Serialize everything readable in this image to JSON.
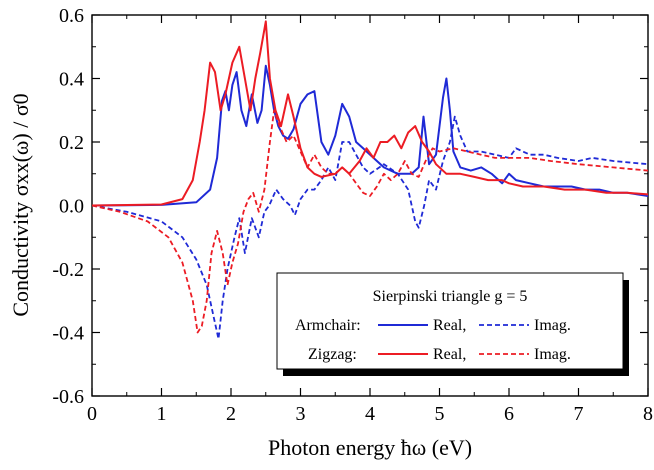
{
  "chart_data": {
    "type": "line",
    "xlabel": "Photon energy ħω (eV)",
    "ylabel": "Conductivity σxx(ω) / σ0",
    "xlim": [
      0,
      8
    ],
    "ylim": [
      -0.6,
      0.6
    ],
    "xticks": [
      "0",
      "1",
      "2",
      "3",
      "4",
      "5",
      "6",
      "7",
      "8"
    ],
    "yticks": [
      "-0.6",
      "-0.4",
      "-0.2",
      "0.0",
      "0.2",
      "0.4",
      "0.6"
    ],
    "grid": false,
    "legend_placement": "bottom-right",
    "legend": {
      "title": "Sierpinski triangle g = 5",
      "row1_label": "Armchair:",
      "row2_label": "Zigzag:",
      "real_label": "Real,",
      "imag_label": "Imag."
    },
    "colors": {
      "armchair": "#1f2ad6",
      "zigzag": "#ec1c24"
    },
    "series": [
      {
        "name": "Armchair Real",
        "group": "armchair",
        "style": "solid",
        "points": [
          [
            0,
            0
          ],
          [
            1.0,
            0.002
          ],
          [
            1.5,
            0.01
          ],
          [
            1.7,
            0.05
          ],
          [
            1.8,
            0.15
          ],
          [
            1.87,
            0.33
          ],
          [
            1.92,
            0.36
          ],
          [
            1.97,
            0.3
          ],
          [
            2.02,
            0.38
          ],
          [
            2.08,
            0.42
          ],
          [
            2.15,
            0.3
          ],
          [
            2.22,
            0.25
          ],
          [
            2.3,
            0.35
          ],
          [
            2.38,
            0.26
          ],
          [
            2.44,
            0.3
          ],
          [
            2.5,
            0.44
          ],
          [
            2.56,
            0.38
          ],
          [
            2.62,
            0.3
          ],
          [
            2.68,
            0.25
          ],
          [
            2.75,
            0.22
          ],
          [
            2.82,
            0.21
          ],
          [
            2.9,
            0.24
          ],
          [
            3.0,
            0.32
          ],
          [
            3.1,
            0.35
          ],
          [
            3.2,
            0.36
          ],
          [
            3.3,
            0.2
          ],
          [
            3.4,
            0.16
          ],
          [
            3.5,
            0.22
          ],
          [
            3.6,
            0.32
          ],
          [
            3.7,
            0.28
          ],
          [
            3.8,
            0.2
          ],
          [
            3.9,
            0.18
          ],
          [
            4.0,
            0.16
          ],
          [
            4.1,
            0.14
          ],
          [
            4.2,
            0.12
          ],
          [
            4.3,
            0.11
          ],
          [
            4.4,
            0.1
          ],
          [
            4.5,
            0.1
          ],
          [
            4.6,
            0.1
          ],
          [
            4.7,
            0.12
          ],
          [
            4.77,
            0.28
          ],
          [
            4.85,
            0.13
          ],
          [
            4.95,
            0.16
          ],
          [
            5.05,
            0.34
          ],
          [
            5.1,
            0.4
          ],
          [
            5.15,
            0.3
          ],
          [
            5.2,
            0.17
          ],
          [
            5.3,
            0.12
          ],
          [
            5.45,
            0.11
          ],
          [
            5.6,
            0.12
          ],
          [
            5.75,
            0.1
          ],
          [
            5.9,
            0.07
          ],
          [
            6.0,
            0.1
          ],
          [
            6.1,
            0.08
          ],
          [
            6.3,
            0.07
          ],
          [
            6.5,
            0.06
          ],
          [
            6.7,
            0.06
          ],
          [
            6.9,
            0.06
          ],
          [
            7.1,
            0.05
          ],
          [
            7.3,
            0.05
          ],
          [
            7.5,
            0.04
          ],
          [
            7.7,
            0.04
          ],
          [
            8.0,
            0.03
          ]
        ]
      },
      {
        "name": "Armchair Imag.",
        "group": "armchair",
        "style": "dashed",
        "points": [
          [
            0,
            0
          ],
          [
            0.5,
            -0.02
          ],
          [
            1.0,
            -0.05
          ],
          [
            1.3,
            -0.1
          ],
          [
            1.5,
            -0.17
          ],
          [
            1.65,
            -0.25
          ],
          [
            1.75,
            -0.35
          ],
          [
            1.82,
            -0.42
          ],
          [
            1.88,
            -0.3
          ],
          [
            1.95,
            -0.2
          ],
          [
            2.05,
            -0.1
          ],
          [
            2.12,
            -0.04
          ],
          [
            2.2,
            -0.15
          ],
          [
            2.3,
            -0.04
          ],
          [
            2.4,
            -0.1
          ],
          [
            2.48,
            -0.02
          ],
          [
            2.55,
            0.0
          ],
          [
            2.65,
            0.05
          ],
          [
            2.75,
            0.02
          ],
          [
            2.85,
            0.0
          ],
          [
            2.92,
            -0.03
          ],
          [
            3.0,
            0.02
          ],
          [
            3.1,
            0.05
          ],
          [
            3.2,
            0.05
          ],
          [
            3.3,
            0.08
          ],
          [
            3.4,
            0.12
          ],
          [
            3.5,
            0.08
          ],
          [
            3.6,
            0.2
          ],
          [
            3.7,
            0.2
          ],
          [
            3.8,
            0.16
          ],
          [
            3.9,
            0.12
          ],
          [
            4.0,
            0.1
          ],
          [
            4.2,
            0.13
          ],
          [
            4.4,
            0.1
          ],
          [
            4.55,
            0.05
          ],
          [
            4.65,
            -0.05
          ],
          [
            4.7,
            -0.07
          ],
          [
            4.78,
            0.0
          ],
          [
            4.85,
            0.08
          ],
          [
            4.95,
            0.05
          ],
          [
            5.05,
            0.14
          ],
          [
            5.15,
            0.2
          ],
          [
            5.22,
            0.28
          ],
          [
            5.3,
            0.22
          ],
          [
            5.4,
            0.17
          ],
          [
            5.6,
            0.17
          ],
          [
            5.8,
            0.16
          ],
          [
            6.0,
            0.15
          ],
          [
            6.1,
            0.18
          ],
          [
            6.3,
            0.16
          ],
          [
            6.5,
            0.16
          ],
          [
            6.7,
            0.15
          ],
          [
            7.0,
            0.14
          ],
          [
            7.2,
            0.15
          ],
          [
            7.5,
            0.14
          ],
          [
            8.0,
            0.13
          ]
        ]
      },
      {
        "name": "Zigzag Real",
        "group": "zigzag",
        "style": "solid",
        "points": [
          [
            0,
            0
          ],
          [
            1.0,
            0.003
          ],
          [
            1.3,
            0.02
          ],
          [
            1.45,
            0.08
          ],
          [
            1.55,
            0.2
          ],
          [
            1.62,
            0.3
          ],
          [
            1.7,
            0.45
          ],
          [
            1.77,
            0.42
          ],
          [
            1.85,
            0.3
          ],
          [
            1.92,
            0.35
          ],
          [
            2.02,
            0.45
          ],
          [
            2.12,
            0.5
          ],
          [
            2.2,
            0.4
          ],
          [
            2.28,
            0.3
          ],
          [
            2.35,
            0.4
          ],
          [
            2.42,
            0.48
          ],
          [
            2.5,
            0.58
          ],
          [
            2.56,
            0.4
          ],
          [
            2.64,
            0.3
          ],
          [
            2.72,
            0.25
          ],
          [
            2.82,
            0.35
          ],
          [
            2.9,
            0.28
          ],
          [
            3.0,
            0.18
          ],
          [
            3.1,
            0.12
          ],
          [
            3.2,
            0.1
          ],
          [
            3.3,
            0.09
          ],
          [
            3.5,
            0.1
          ],
          [
            3.6,
            0.12
          ],
          [
            3.7,
            0.1
          ],
          [
            3.85,
            0.14
          ],
          [
            3.95,
            0.18
          ],
          [
            4.05,
            0.15
          ],
          [
            4.15,
            0.2
          ],
          [
            4.25,
            0.2
          ],
          [
            4.35,
            0.22
          ],
          [
            4.45,
            0.18
          ],
          [
            4.55,
            0.23
          ],
          [
            4.65,
            0.25
          ],
          [
            4.75,
            0.2
          ],
          [
            4.85,
            0.17
          ],
          [
            4.95,
            0.13
          ],
          [
            5.1,
            0.1
          ],
          [
            5.3,
            0.1
          ],
          [
            5.5,
            0.09
          ],
          [
            5.7,
            0.08
          ],
          [
            5.9,
            0.08
          ],
          [
            6.0,
            0.07
          ],
          [
            6.2,
            0.06
          ],
          [
            6.5,
            0.06
          ],
          [
            6.8,
            0.05
          ],
          [
            7.1,
            0.05
          ],
          [
            7.4,
            0.04
          ],
          [
            7.7,
            0.04
          ],
          [
            8.0,
            0.035
          ]
        ]
      },
      {
        "name": "Zigzag Imag.",
        "group": "zigzag",
        "style": "dashed",
        "points": [
          [
            0,
            0
          ],
          [
            0.4,
            -0.02
          ],
          [
            0.8,
            -0.05
          ],
          [
            1.1,
            -0.1
          ],
          [
            1.3,
            -0.18
          ],
          [
            1.45,
            -0.3
          ],
          [
            1.52,
            -0.4
          ],
          [
            1.58,
            -0.38
          ],
          [
            1.65,
            -0.3
          ],
          [
            1.72,
            -0.15
          ],
          [
            1.8,
            -0.08
          ],
          [
            1.88,
            -0.15
          ],
          [
            1.95,
            -0.25
          ],
          [
            2.02,
            -0.18
          ],
          [
            2.1,
            -0.12
          ],
          [
            2.18,
            -0.02
          ],
          [
            2.25,
            0.02
          ],
          [
            2.32,
            0.04
          ],
          [
            2.4,
            -0.02
          ],
          [
            2.48,
            0.05
          ],
          [
            2.56,
            0.2
          ],
          [
            2.62,
            0.3
          ],
          [
            2.7,
            0.25
          ],
          [
            2.8,
            0.2
          ],
          [
            2.9,
            0.22
          ],
          [
            3.0,
            0.17
          ],
          [
            3.1,
            0.12
          ],
          [
            3.2,
            0.16
          ],
          [
            3.3,
            0.12
          ],
          [
            3.4,
            0.1
          ],
          [
            3.5,
            0.1
          ],
          [
            3.6,
            0.12
          ],
          [
            3.7,
            0.1
          ],
          [
            3.8,
            0.07
          ],
          [
            3.9,
            0.04
          ],
          [
            4.0,
            0.03
          ],
          [
            4.1,
            0.06
          ],
          [
            4.2,
            0.1
          ],
          [
            4.3,
            0.08
          ],
          [
            4.4,
            0.1
          ],
          [
            4.5,
            0.14
          ],
          [
            4.6,
            0.1
          ],
          [
            4.7,
            0.09
          ],
          [
            4.8,
            0.14
          ],
          [
            4.9,
            0.18
          ],
          [
            5.0,
            0.17
          ],
          [
            5.2,
            0.18
          ],
          [
            5.4,
            0.17
          ],
          [
            5.6,
            0.16
          ],
          [
            5.8,
            0.15
          ],
          [
            6.0,
            0.15
          ],
          [
            6.3,
            0.15
          ],
          [
            6.6,
            0.14
          ],
          [
            7.0,
            0.13
          ],
          [
            7.5,
            0.12
          ],
          [
            8.0,
            0.11
          ]
        ]
      }
    ]
  }
}
